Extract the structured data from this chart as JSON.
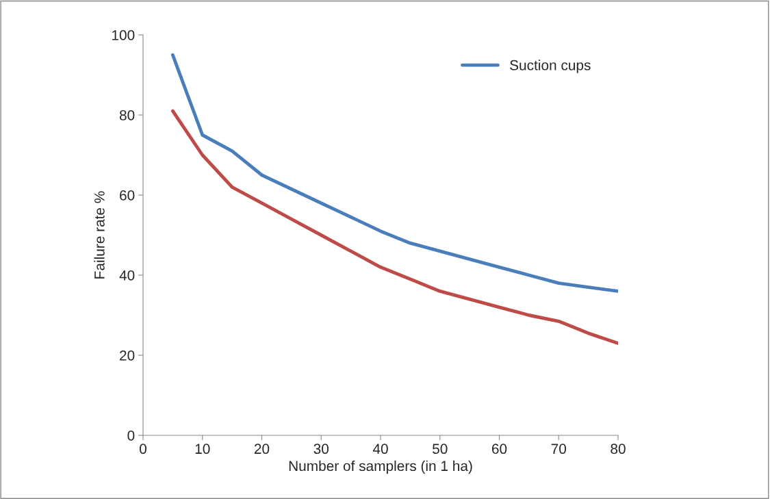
{
  "chart_data": {
    "type": "line",
    "xlabel": "Number of samplers (in 1 ha)",
    "ylabel": "Failure rate %",
    "x": [
      5,
      10,
      15,
      20,
      25,
      30,
      35,
      40,
      45,
      50,
      55,
      60,
      65,
      70,
      75,
      80
    ],
    "series": [
      {
        "name": "Suction cups",
        "color": "#4a7ebb",
        "values": [
          95,
          75,
          71,
          65,
          61.5,
          58,
          54.5,
          51,
          48,
          46,
          44,
          42,
          40,
          38,
          37,
          36
        ]
      },
      {
        "color": "#be4b48",
        "values": [
          81,
          70,
          62,
          58,
          54,
          50,
          46,
          42,
          39,
          36,
          34,
          32,
          30,
          28.5,
          25.5,
          23
        ]
      }
    ],
    "xlim": [
      0,
      80
    ],
    "xticks": [
      0,
      10,
      20,
      30,
      40,
      50,
      60,
      70,
      80
    ],
    "ylim": [
      0,
      100
    ],
    "yticks": [
      0,
      20,
      40,
      60,
      80,
      100
    ],
    "grid": false,
    "legend": "top right",
    "marker": "none",
    "line_style": "solid"
  }
}
